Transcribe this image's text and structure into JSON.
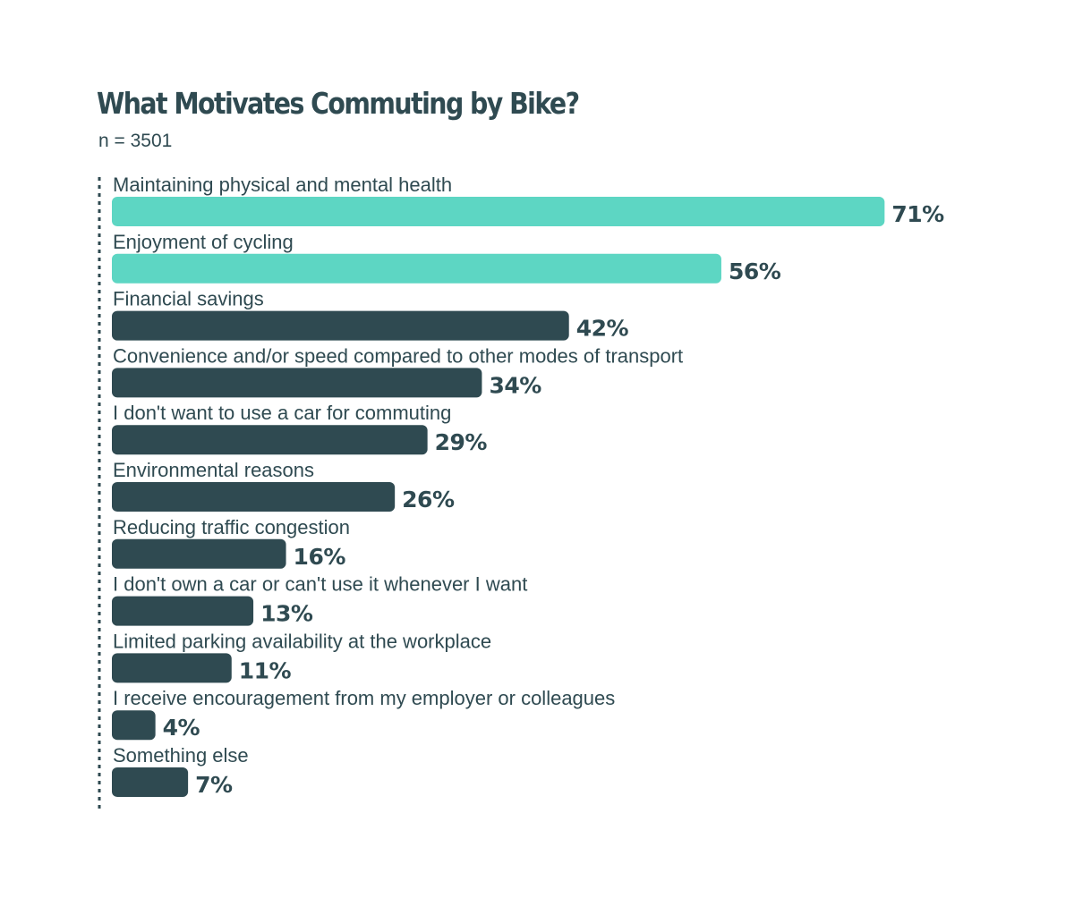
{
  "chart_data": {
    "type": "bar",
    "orientation": "horizontal",
    "title": "What Motivates Commuting by Bike?",
    "subtitle": "n = 3501",
    "categories": [
      "Maintaining physical and mental health",
      "Enjoyment of cycling",
      "Financial savings",
      "Convenience and/or speed compared to other modes of transport",
      "I don't want to use a car for commuting",
      "Environmental reasons",
      "Reducing traffic congestion",
      "I don't own a car or can't use it whenever I want",
      "Limited parking availability at the workplace",
      "I receive encouragement from my employer or colleagues",
      "Something else"
    ],
    "values": [
      71,
      56,
      42,
      34,
      29,
      26,
      16,
      13,
      11,
      4,
      7
    ],
    "value_labels": [
      "71%",
      "56%",
      "42%",
      "34%",
      "29%",
      "26%",
      "16%",
      "13%",
      "11%",
      "4%",
      "7%"
    ],
    "highlight_count": 2,
    "colors": {
      "highlight": "#5dd6c3",
      "default": "#2f4a51",
      "text": "#2f4a51"
    },
    "xlim": [
      0,
      100
    ],
    "grid": false
  }
}
